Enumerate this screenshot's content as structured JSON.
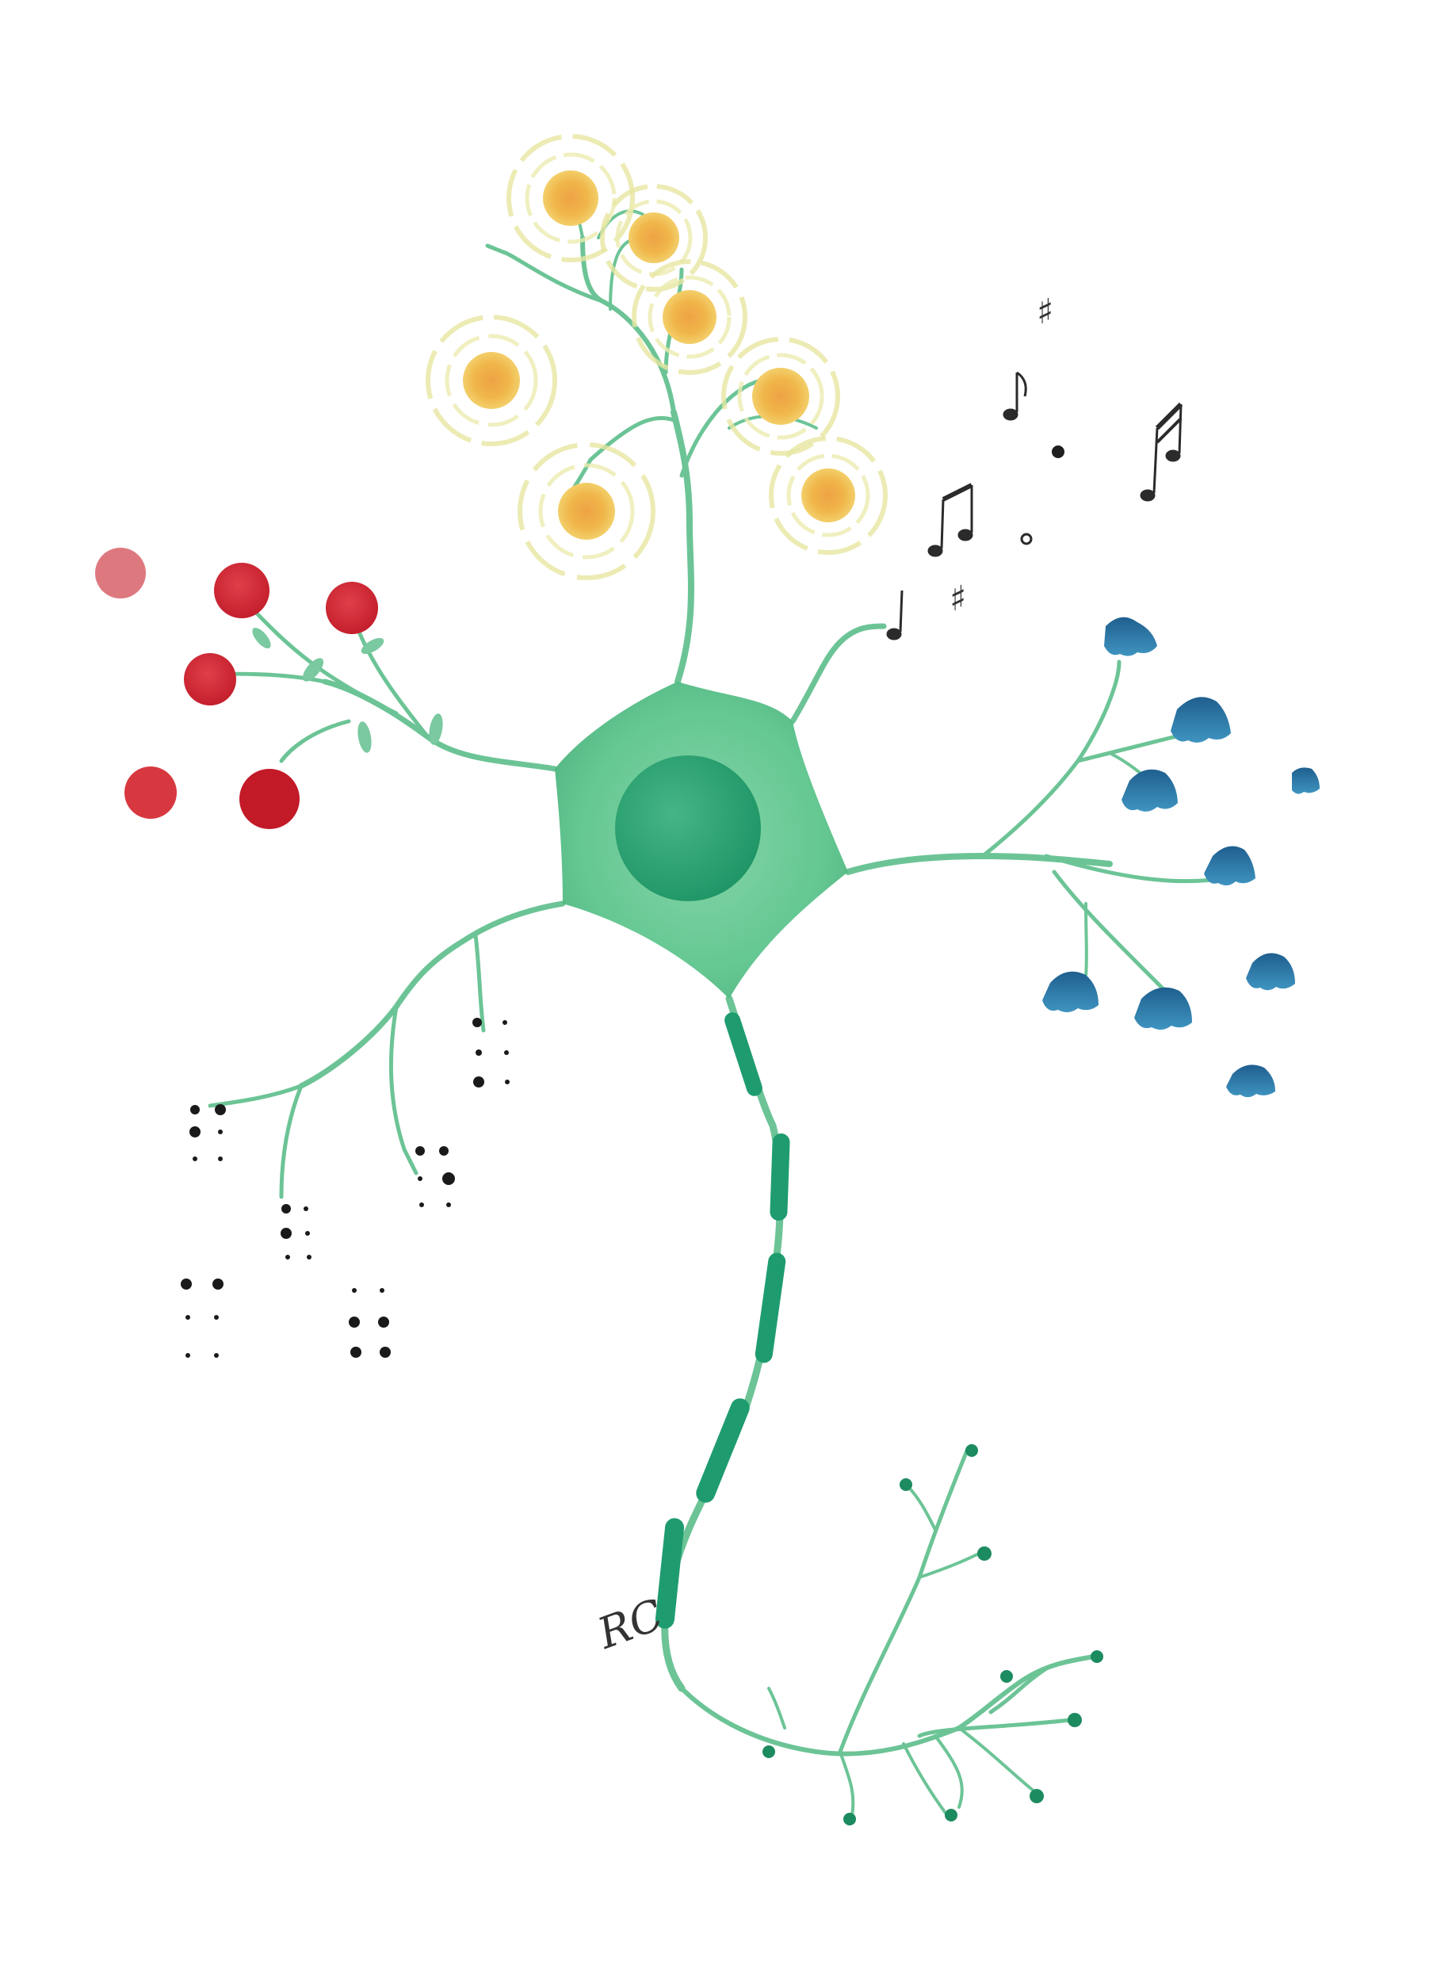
{
  "artwork": {
    "kind": "watercolor illustration",
    "subject": "neuron",
    "signature_text": "RC",
    "colors": {
      "soma": "#5cc48c",
      "nucleus": "#26a06e",
      "stem": "#6cc496",
      "myelin": "#1f9c6f",
      "berries": "#d2303a",
      "flowers_yellow_halo": "#e7e6a1",
      "flowers_yellow_center": "#eeaa3c",
      "bells_blue": "#2f78a8",
      "braille_dots": "#1a1a1a",
      "notes": "#2b2b2b"
    },
    "motifs": [
      "red-berries",
      "yellow-flowers",
      "music-notes",
      "blue-bell-flowers",
      "braille-dots",
      "axon-terminals"
    ]
  }
}
